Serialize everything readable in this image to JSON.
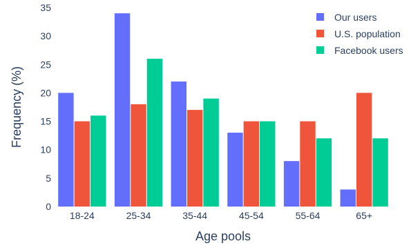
{
  "chart_data": {
    "type": "bar",
    "title": "",
    "xlabel": "Age pools",
    "ylabel": "Frequency (%)",
    "categories": [
      "18-24",
      "25-34",
      "35-44",
      "45-54",
      "55-64",
      "65+"
    ],
    "ylim": [
      0,
      35
    ],
    "yticks": [
      0,
      5,
      10,
      15,
      20,
      25,
      30,
      35
    ],
    "grid": true,
    "legend_position": "top-right",
    "series": [
      {
        "name": "Our users",
        "color": "#636efa",
        "values": [
          20,
          34,
          22,
          13,
          8,
          3
        ]
      },
      {
        "name": "U.S. population",
        "color": "#ef553b",
        "values": [
          15,
          18,
          17,
          15,
          15,
          20
        ]
      },
      {
        "name": "Facebook users",
        "color": "#00cc96",
        "values": [
          16,
          26,
          19,
          15,
          12,
          12
        ]
      }
    ]
  }
}
